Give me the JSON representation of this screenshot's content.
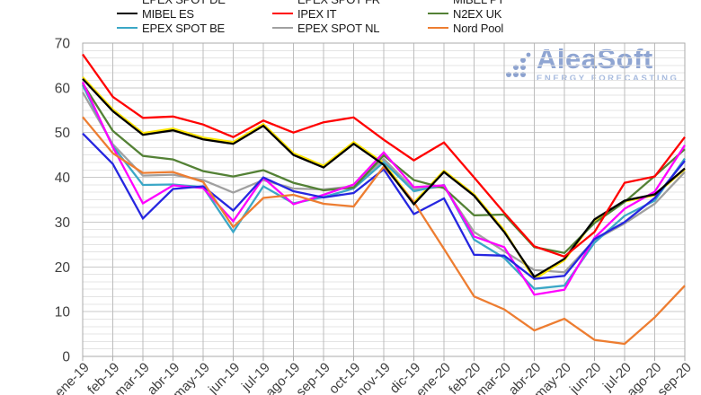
{
  "logo": {
    "name": "AleaSoft",
    "tagline": "ENERGY FORECASTING"
  },
  "axes": {
    "y_tick_color": "#3f3f3f",
    "x_tick_color": "#3f3f3f"
  },
  "chart_data": {
    "type": "line",
    "title": "",
    "xlabel": "",
    "ylabel": "",
    "ylim": [
      0,
      70
    ],
    "yticks": [
      0,
      10,
      20,
      30,
      40,
      50,
      60,
      70
    ],
    "grid": "minor horizontal lines + vertical line per month, light gray, framed plot area",
    "legend_position": "top, 3 columns x 3 rows, first row clipped by image edge",
    "watermark": "AleaSoft Energy Forecasting, light blue, upper right",
    "categories": [
      "ene-19",
      "feb-19",
      "mar-19",
      "abr-19",
      "may-19",
      "jun-19",
      "jul-19",
      "ago-19",
      "sep-19",
      "oct-19",
      "nov-19",
      "dic-19",
      "ene-20",
      "feb-20",
      "mar-20",
      "abr-20",
      "may-20",
      "jun-20",
      "jul-20",
      "ago-20",
      "sep-20"
    ],
    "unit": "EUR/MWh (implied)",
    "series": [
      {
        "name": "EPEX SPOT DE",
        "color": "#2626e0",
        "values": [
          49.8,
          43.0,
          30.8,
          37.4,
          38.0,
          32.6,
          40.0,
          36.9,
          35.5,
          36.5,
          41.8,
          31.8,
          35.3,
          22.7,
          22.5,
          17.3,
          18.0,
          26.2,
          30.0,
          35.4,
          43.7
        ]
      },
      {
        "name": "EPEX SPOT FR",
        "color": "#ff00ff",
        "values": [
          61.3,
          46.8,
          34.2,
          38.2,
          37.6,
          30.2,
          39.9,
          34.0,
          36.1,
          38.4,
          45.6,
          37.8,
          38.2,
          26.8,
          24.4,
          13.8,
          14.9,
          26.5,
          33.0,
          36.8,
          47.2
        ]
      },
      {
        "name": "MIBEL PT",
        "color": "#ffe500",
        "values": [
          62.4,
          55.2,
          49.9,
          50.9,
          48.9,
          47.9,
          51.9,
          45.4,
          42.6,
          47.9,
          43.2,
          34.4,
          41.5,
          36.2,
          28.2,
          17.2,
          21.5,
          30.4,
          34.6,
          36.0,
          41.8
        ]
      },
      {
        "name": "MIBEL ES",
        "color": "#000000",
        "values": [
          62.0,
          54.8,
          49.5,
          50.5,
          48.5,
          47.5,
          51.5,
          45.0,
          42.2,
          47.5,
          42.8,
          34.0,
          41.2,
          35.9,
          27.8,
          17.8,
          21.8,
          30.6,
          34.8,
          36.2,
          42.0
        ]
      },
      {
        "name": "IPEX IT",
        "color": "#ff0000",
        "values": [
          67.5,
          58.0,
          53.3,
          53.6,
          51.8,
          49.0,
          52.7,
          50.0,
          52.3,
          53.4,
          48.4,
          43.8,
          47.8,
          40.0,
          32.1,
          24.6,
          22.3,
          27.8,
          38.8,
          40.2,
          49.0
        ]
      },
      {
        "name": "N2EX UK",
        "color": "#538135",
        "values": [
          61.0,
          50.4,
          44.8,
          44.0,
          41.4,
          40.2,
          41.6,
          38.8,
          37.1,
          37.7,
          44.9,
          39.4,
          37.6,
          31.5,
          31.7,
          24.4,
          23.1,
          29.8,
          34.5,
          40.3,
          46.3
        ]
      },
      {
        "name": "EPEX SPOT BE",
        "color": "#3ba7c6",
        "values": [
          60.6,
          47.0,
          38.3,
          38.4,
          37.8,
          27.8,
          38.0,
          34.2,
          35.6,
          37.5,
          43.4,
          36.9,
          38.3,
          26.1,
          22.0,
          15.1,
          15.8,
          25.4,
          31.4,
          34.8,
          44.2
        ]
      },
      {
        "name": "EPEX SPOT NL",
        "color": "#a0a0a0",
        "values": [
          59.0,
          47.4,
          40.4,
          40.6,
          39.4,
          36.6,
          39.4,
          37.5,
          37.3,
          38.0,
          44.1,
          37.3,
          37.9,
          27.8,
          23.5,
          19.3,
          18.8,
          26.0,
          29.7,
          34.1,
          41.2
        ]
      },
      {
        "name": "Nord Pool",
        "color": "#ed7d31",
        "values": [
          53.5,
          45.4,
          41.0,
          41.2,
          39.0,
          28.9,
          35.4,
          36.1,
          34.1,
          33.5,
          42.4,
          34.5,
          24.0,
          13.4,
          10.5,
          5.8,
          8.4,
          3.7,
          2.8,
          8.7,
          15.8
        ]
      }
    ]
  }
}
